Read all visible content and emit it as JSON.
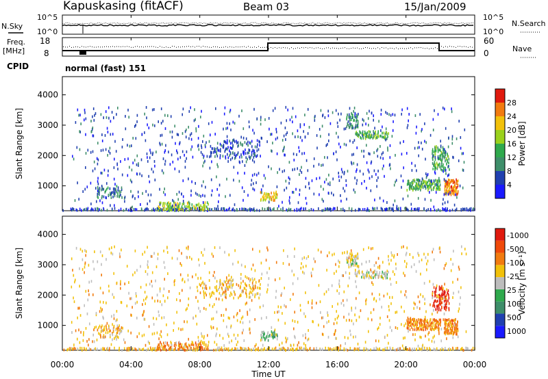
{
  "header": {
    "station": "Kapuskasing (fitACF)",
    "beam": "Beam 03",
    "date": "15/Jan/2009"
  },
  "panels": {
    "nsky_label": "N.Sky",
    "nsearch_label": "N.Search",
    "nsky_ticks": [
      "10^5",
      "10^0"
    ],
    "freq_label_1": "Freq.",
    "freq_label_2": "[MHz]",
    "freq_ticks": [
      "18",
      "8"
    ],
    "nave_label": "Nave",
    "nave_ticks": [
      "60",
      "0"
    ],
    "cpid_label": "CPID",
    "cpid_text": "normal (fast) 151"
  },
  "chart_data": [
    {
      "type": "heatmap",
      "name": "power",
      "ylabel": "Slant Range [km]",
      "yticks": [
        1000,
        2000,
        3000,
        4000
      ],
      "ylim": [
        180,
        4600
      ],
      "xlim": [
        0,
        24
      ],
      "colorbar_label": "Power [dB]",
      "colorbar_ticks": [
        "4",
        "8",
        "12",
        "16",
        "20",
        "24",
        "28"
      ],
      "colors": [
        "#1a1aff",
        "#2040b0",
        "#3e8e6a",
        "#2fa94d",
        "#9ad11c",
        "#f2c10a",
        "#f27b0f",
        "#e01a0e"
      ],
      "regions": [
        {
          "t": [
            0.0,
            24.0
          ],
          "r": [
            180,
            260
          ],
          "density": 0.5,
          "level": 1
        },
        {
          "t": [
            2.0,
            3.5
          ],
          "r": [
            600,
            1000
          ],
          "density": 0.35,
          "level": 2
        },
        {
          "t": [
            5.5,
            8.5
          ],
          "r": [
            180,
            450
          ],
          "density": 0.45,
          "level": 4
        },
        {
          "t": [
            8.0,
            11.5
          ],
          "r": [
            1900,
            2500
          ],
          "density": 0.25,
          "level": 1
        },
        {
          "t": [
            11.5,
            12.5
          ],
          "r": [
            500,
            800
          ],
          "density": 0.6,
          "level": 5
        },
        {
          "t": [
            16.5,
            17.2
          ],
          "r": [
            2900,
            3400
          ],
          "density": 0.5,
          "level": 2
        },
        {
          "t": [
            17.0,
            19.0
          ],
          "r": [
            2550,
            2800
          ],
          "density": 0.5,
          "level": 3
        },
        {
          "t": [
            20.0,
            22.0
          ],
          "r": [
            850,
            1200
          ],
          "density": 0.7,
          "level": 3
        },
        {
          "t": [
            21.5,
            22.5
          ],
          "r": [
            1500,
            2300
          ],
          "density": 0.45,
          "level": 3
        },
        {
          "t": [
            22.2,
            23.0
          ],
          "r": [
            700,
            1200
          ],
          "density": 0.85,
          "level": 6
        },
        {
          "t": [
            0.5,
            23.5
          ],
          "r": [
            300,
            3600
          ],
          "density": 0.04,
          "level": 1
        }
      ]
    },
    {
      "type": "heatmap",
      "name": "velocity",
      "ylabel": "Slant Range [km]",
      "yticks": [
        1000,
        2000,
        3000,
        4000
      ],
      "ylim": [
        180,
        4600
      ],
      "xlim": [
        0,
        24
      ],
      "xticks": [
        "00:00",
        "04:00",
        "08:00",
        "12:00",
        "16:00",
        "20:00",
        "00:00"
      ],
      "xlabel": "Time UT",
      "colorbar_label": "Velocity [m s⁻¹]",
      "colorbar_ticks": [
        "1000",
        "500",
        "100",
        "25",
        "-25",
        "-100",
        "-500",
        "-1000"
      ],
      "colors": [
        "#1a1aff",
        "#2040b0",
        "#3e8e6a",
        "#2fa94d",
        "#bdbdbd",
        "#f2c10a",
        "#f27b0f",
        "#f04a0a",
        "#e01a0e"
      ],
      "regions": [
        {
          "t": [
            0.0,
            24.0
          ],
          "r": [
            180,
            260
          ],
          "density": 0.5,
          "level": 5
        },
        {
          "t": [
            2.0,
            3.5
          ],
          "r": [
            600,
            1000
          ],
          "density": 0.3,
          "level": 5
        },
        {
          "t": [
            5.5,
            8.5
          ],
          "r": [
            180,
            450
          ],
          "density": 0.45,
          "level": 6
        },
        {
          "t": [
            8.0,
            11.5
          ],
          "r": [
            1900,
            2500
          ],
          "density": 0.2,
          "level": 5
        },
        {
          "t": [
            11.5,
            12.5
          ],
          "r": [
            500,
            800
          ],
          "density": 0.6,
          "level": 3
        },
        {
          "t": [
            16.5,
            17.2
          ],
          "r": [
            2900,
            3400
          ],
          "density": 0.5,
          "level": 4
        },
        {
          "t": [
            17.0,
            19.0
          ],
          "r": [
            2550,
            2800
          ],
          "density": 0.4,
          "level": 4
        },
        {
          "t": [
            20.0,
            22.0
          ],
          "r": [
            850,
            1200
          ],
          "density": 0.75,
          "level": 6
        },
        {
          "t": [
            21.5,
            22.5
          ],
          "r": [
            1500,
            2300
          ],
          "density": 0.45,
          "level": 8
        },
        {
          "t": [
            22.2,
            23.0
          ],
          "r": [
            700,
            1200
          ],
          "density": 0.85,
          "level": 6
        },
        {
          "t": [
            0.5,
            23.5
          ],
          "r": [
            300,
            3600
          ],
          "density": 0.04,
          "level": 5
        }
      ]
    }
  ]
}
